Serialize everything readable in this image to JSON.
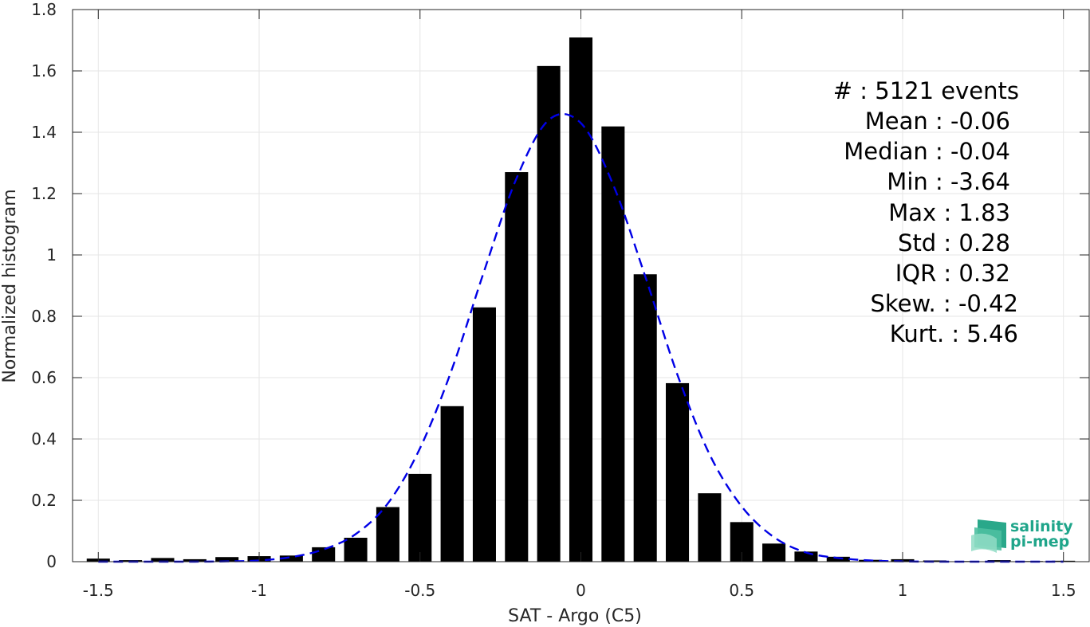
{
  "chart_data": {
    "type": "bar",
    "xlabel": "SAT - Argo (C5)",
    "ylabel": "Normalized histogram",
    "xlim": [
      -1.58,
      1.58
    ],
    "ylim": [
      0,
      1.8
    ],
    "xticks": [
      -1.5,
      -1,
      -0.5,
      0,
      0.5,
      1,
      1.5
    ],
    "xtick_labels": [
      "-1.5",
      "-1",
      "-0.5",
      "0",
      "0.5",
      "1",
      "1.5"
    ],
    "yticks": [
      0,
      0.2,
      0.4,
      0.6,
      0.8,
      1,
      1.2,
      1.4,
      1.6,
      1.8
    ],
    "ytick_labels": [
      "0",
      "0.2",
      "0.4",
      "0.6",
      "0.8",
      "1",
      "1.2",
      "1.4",
      "1.6",
      "1.8"
    ],
    "grid": true,
    "bar_color": "#000000",
    "fit_color": "#0000e6",
    "bin_width": 0.1,
    "bars": {
      "x": [
        -1.5,
        -1.4,
        -1.3,
        -1.2,
        -1.1,
        -1.0,
        -0.9,
        -0.8,
        -0.7,
        -0.6,
        -0.5,
        -0.4,
        -0.3,
        -0.2,
        -0.1,
        0.0,
        0.1,
        0.2,
        0.3,
        0.4,
        0.5,
        0.6,
        0.7,
        0.8,
        0.9,
        1.0,
        1.1,
        1.2,
        1.3,
        1.4,
        1.5
      ],
      "values": [
        0.01,
        0.005,
        0.012,
        0.008,
        0.015,
        0.018,
        0.02,
        0.047,
        0.078,
        0.178,
        0.286,
        0.507,
        0.829,
        1.27,
        1.616,
        1.709,
        1.419,
        0.937,
        0.582,
        0.223,
        0.129,
        0.059,
        0.033,
        0.016,
        0.006,
        0.008,
        0.004,
        0.002,
        0.005,
        0.002,
        0.003
      ]
    },
    "fit": {
      "name": "",
      "style": "dashed",
      "x": [
        -1.5,
        -1.4,
        -1.3,
        -1.2,
        -1.1,
        -1.0,
        -0.9,
        -0.8,
        -0.7,
        -0.6,
        -0.5,
        -0.4,
        -0.3,
        -0.2,
        -0.1,
        0.0,
        0.1,
        0.2,
        0.3,
        0.4,
        0.5,
        0.6,
        0.7,
        0.8,
        0.9,
        1.0,
        1.1,
        1.2,
        1.3,
        1.4,
        1.5
      ],
      "values": [
        0.0,
        0.0,
        0.0,
        0.0,
        0.001,
        0.004,
        0.015,
        0.04,
        0.09,
        0.19,
        0.37,
        0.63,
        0.95,
        1.25,
        1.44,
        1.43,
        1.23,
        0.93,
        0.61,
        0.35,
        0.18,
        0.08,
        0.03,
        0.012,
        0.004,
        0.001,
        0.0,
        0.0,
        0.0,
        0.0,
        0.0
      ]
    },
    "annotations": [
      "#  : 5121 events",
      "Mean : -0.06",
      "Median : -0.04",
      "Min : -3.64",
      "Max : 1.83",
      "Std : 0.28",
      "IQR : 0.32",
      "Skew. : -0.42",
      "Kurt. : 5.46"
    ]
  },
  "logo": {
    "line1": "salinity",
    "line2": "pi-mep",
    "color": "#1fa58a"
  }
}
